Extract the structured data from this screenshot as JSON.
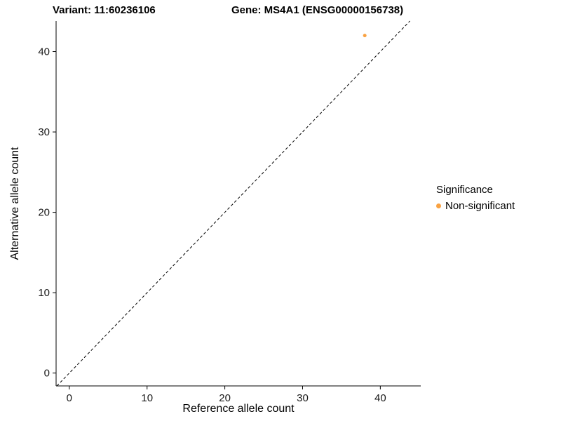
{
  "titles": {
    "left": "Variant: 11:60236106",
    "right": "Gene: MS4A1 (ENSG00000156738)"
  },
  "chart_data": {
    "type": "scatter",
    "title_left": "Variant: 11:60236106",
    "title_right": "Gene: MS4A1 (ENSG00000156738)",
    "xlabel": "Reference allele count",
    "ylabel": "Alternative allele count",
    "xlim": [
      -1.7,
      45.2
    ],
    "ylim": [
      -1.6,
      43.8
    ],
    "x_ticks": [
      0,
      10,
      20,
      30,
      40
    ],
    "y_ticks": [
      0,
      10,
      20,
      30,
      40
    ],
    "grid": false,
    "points": [
      {
        "x": 38,
        "y": 42,
        "series": "Non-significant"
      }
    ],
    "point_color": "#F9A242",
    "point_radius": 2.5,
    "identity_line": {
      "from": 0,
      "to": 43.8,
      "style": "dashed",
      "color": "#000000"
    },
    "legend": {
      "title": "Significance",
      "position": "right",
      "entries": [
        {
          "label": "Non-significant",
          "color": "#F9A242"
        }
      ]
    }
  }
}
